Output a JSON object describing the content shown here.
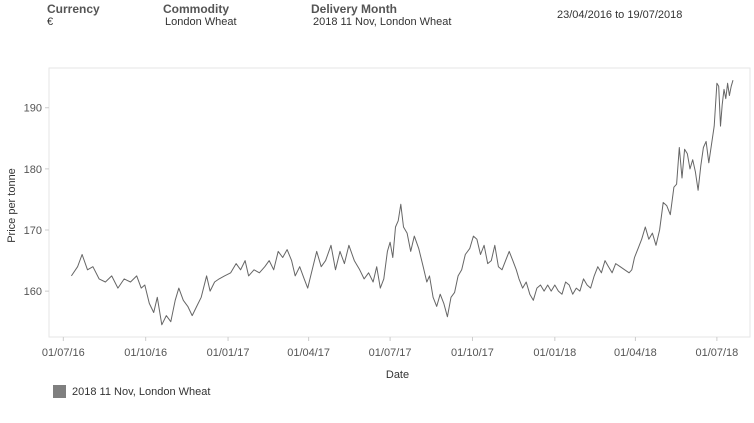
{
  "header": {
    "currency": {
      "label": "Currency",
      "value": "€"
    },
    "commodity": {
      "label": "Commodity",
      "value": "London Wheat"
    },
    "delivery": {
      "label": "Delivery Month",
      "value": "2018 11 Nov, London Wheat"
    },
    "date_range": "23/04/2016 to 19/07/2018"
  },
  "colors": {
    "line": "#666666",
    "swatch": "#7f7f7f",
    "axis": "#cccccc"
  },
  "chart_data": {
    "type": "line",
    "xlabel": "Date",
    "ylabel": "Price per tonne",
    "x_ticks": [
      "01/07/16",
      "01/10/16",
      "01/01/17",
      "01/04/17",
      "01/07/17",
      "01/10/17",
      "01/01/18",
      "01/04/18",
      "01/07/18"
    ],
    "y_ticks": [
      160,
      170,
      180,
      190
    ],
    "ylim": [
      152.5,
      196.5
    ],
    "xlim": [
      "2016-06-15",
      "2018-08-07"
    ],
    "grid": false,
    "legend_position": "bottom-left",
    "series": [
      {
        "name": "2018 11 Nov, London Wheat",
        "points": [
          [
            "2016-07-10",
            162.5
          ],
          [
            "2016-07-17",
            164.0
          ],
          [
            "2016-07-22",
            166.0
          ],
          [
            "2016-07-28",
            163.5
          ],
          [
            "2016-08-03",
            164.0
          ],
          [
            "2016-08-10",
            162.0
          ],
          [
            "2016-08-17",
            161.5
          ],
          [
            "2016-08-24",
            162.5
          ],
          [
            "2016-08-31",
            160.5
          ],
          [
            "2016-09-07",
            162.0
          ],
          [
            "2016-09-14",
            161.5
          ],
          [
            "2016-09-21",
            162.5
          ],
          [
            "2016-09-26",
            160.5
          ],
          [
            "2016-09-30",
            161.0
          ],
          [
            "2016-10-05",
            158.0
          ],
          [
            "2016-10-10",
            156.5
          ],
          [
            "2016-10-14",
            159.0
          ],
          [
            "2016-10-19",
            154.5
          ],
          [
            "2016-10-24",
            156.0
          ],
          [
            "2016-10-29",
            155.0
          ],
          [
            "2016-11-03",
            158.5
          ],
          [
            "2016-11-07",
            160.5
          ],
          [
            "2016-11-12",
            158.5
          ],
          [
            "2016-11-17",
            157.5
          ],
          [
            "2016-11-22",
            156.0
          ],
          [
            "2016-11-27",
            157.5
          ],
          [
            "2016-12-02",
            159.0
          ],
          [
            "2016-12-08",
            162.5
          ],
          [
            "2016-12-12",
            160.0
          ],
          [
            "2016-12-17",
            161.5
          ],
          [
            "2016-12-22",
            162.0
          ],
          [
            "2016-12-28",
            162.5
          ],
          [
            "2017-01-04",
            163.0
          ],
          [
            "2017-01-10",
            164.5
          ],
          [
            "2017-01-15",
            163.5
          ],
          [
            "2017-01-20",
            165.0
          ],
          [
            "2017-01-24",
            162.5
          ],
          [
            "2017-01-30",
            163.5
          ],
          [
            "2017-02-05",
            163.0
          ],
          [
            "2017-02-11",
            164.0
          ],
          [
            "2017-02-16",
            165.0
          ],
          [
            "2017-02-21",
            163.5
          ],
          [
            "2017-02-26",
            166.5
          ],
          [
            "2017-03-03",
            165.5
          ],
          [
            "2017-03-08",
            166.8
          ],
          [
            "2017-03-13",
            165.0
          ],
          [
            "2017-03-17",
            162.5
          ],
          [
            "2017-03-22",
            164.0
          ],
          [
            "2017-03-27",
            162.0
          ],
          [
            "2017-03-31",
            160.5
          ],
          [
            "2017-04-05",
            163.5
          ],
          [
            "2017-04-10",
            166.5
          ],
          [
            "2017-04-15",
            164.0
          ],
          [
            "2017-04-20",
            165.0
          ],
          [
            "2017-04-26",
            167.5
          ],
          [
            "2017-05-01",
            163.5
          ],
          [
            "2017-05-06",
            166.5
          ],
          [
            "2017-05-11",
            164.5
          ],
          [
            "2017-05-16",
            167.5
          ],
          [
            "2017-05-22",
            165.0
          ],
          [
            "2017-05-28",
            163.5
          ],
          [
            "2017-06-02",
            162.0
          ],
          [
            "2017-06-07",
            163.0
          ],
          [
            "2017-06-12",
            161.5
          ],
          [
            "2017-06-16",
            164.0
          ],
          [
            "2017-06-20",
            160.5
          ],
          [
            "2017-06-24",
            162.0
          ],
          [
            "2017-06-28",
            166.5
          ],
          [
            "2017-07-01",
            168.0
          ],
          [
            "2017-07-04",
            165.5
          ],
          [
            "2017-07-07",
            170.5
          ],
          [
            "2017-07-10",
            171.5
          ],
          [
            "2017-07-13",
            174.2
          ],
          [
            "2017-07-16",
            170.5
          ],
          [
            "2017-07-20",
            169.5
          ],
          [
            "2017-07-24",
            166.5
          ],
          [
            "2017-07-28",
            169.0
          ],
          [
            "2017-08-02",
            167.0
          ],
          [
            "2017-08-07",
            164.0
          ],
          [
            "2017-08-11",
            161.5
          ],
          [
            "2017-08-14",
            162.5
          ],
          [
            "2017-08-18",
            159.0
          ],
          [
            "2017-08-22",
            157.5
          ],
          [
            "2017-08-26",
            159.5
          ],
          [
            "2017-08-30",
            158.0
          ],
          [
            "2017-09-03",
            155.8
          ],
          [
            "2017-09-07",
            159.0
          ],
          [
            "2017-09-11",
            159.8
          ],
          [
            "2017-09-15",
            162.5
          ],
          [
            "2017-09-19",
            163.5
          ],
          [
            "2017-09-23",
            166.0
          ],
          [
            "2017-09-28",
            167.0
          ],
          [
            "2017-10-02",
            169.0
          ],
          [
            "2017-10-06",
            168.5
          ],
          [
            "2017-10-10",
            166.0
          ],
          [
            "2017-10-14",
            167.5
          ],
          [
            "2017-10-18",
            164.5
          ],
          [
            "2017-10-22",
            165.0
          ],
          [
            "2017-10-26",
            167.5
          ],
          [
            "2017-10-30",
            164.0
          ],
          [
            "2017-11-03",
            163.5
          ],
          [
            "2017-11-07",
            165.0
          ],
          [
            "2017-11-11",
            166.5
          ],
          [
            "2017-11-15",
            165.0
          ],
          [
            "2017-11-19",
            163.5
          ],
          [
            "2017-11-22",
            162.0
          ],
          [
            "2017-11-26",
            160.5
          ],
          [
            "2017-11-30",
            161.5
          ],
          [
            "2017-12-04",
            159.5
          ],
          [
            "2017-12-08",
            158.5
          ],
          [
            "2017-12-12",
            160.5
          ],
          [
            "2017-12-16",
            161.0
          ],
          [
            "2017-12-20",
            160.0
          ],
          [
            "2017-12-24",
            161.0
          ],
          [
            "2017-12-28",
            160.0
          ],
          [
            "2018-01-01",
            161.0
          ],
          [
            "2018-01-05",
            160.0
          ],
          [
            "2018-01-09",
            159.5
          ],
          [
            "2018-01-13",
            161.5
          ],
          [
            "2018-01-17",
            161.0
          ],
          [
            "2018-01-21",
            159.5
          ],
          [
            "2018-01-25",
            160.5
          ],
          [
            "2018-01-29",
            160.0
          ],
          [
            "2018-02-02",
            162.0
          ],
          [
            "2018-02-06",
            161.0
          ],
          [
            "2018-02-10",
            160.5
          ],
          [
            "2018-02-14",
            162.5
          ],
          [
            "2018-02-18",
            164.0
          ],
          [
            "2018-02-22",
            163.0
          ],
          [
            "2018-02-26",
            165.0
          ],
          [
            "2018-03-02",
            164.0
          ],
          [
            "2018-03-06",
            163.0
          ],
          [
            "2018-03-10",
            164.5
          ],
          [
            "2018-03-15",
            164.0
          ],
          [
            "2018-03-20",
            163.5
          ],
          [
            "2018-03-25",
            163.0
          ],
          [
            "2018-03-28",
            163.5
          ],
          [
            "2018-03-31",
            165.5
          ],
          [
            "2018-04-04",
            167.0
          ],
          [
            "2018-04-08",
            168.5
          ],
          [
            "2018-04-12",
            170.5
          ],
          [
            "2018-04-16",
            168.5
          ],
          [
            "2018-04-20",
            169.5
          ],
          [
            "2018-04-24",
            167.5
          ],
          [
            "2018-04-28",
            170.0
          ],
          [
            "2018-05-02",
            174.5
          ],
          [
            "2018-05-06",
            174.0
          ],
          [
            "2018-05-10",
            172.5
          ],
          [
            "2018-05-14",
            177.0
          ],
          [
            "2018-05-17",
            177.5
          ],
          [
            "2018-05-20",
            183.5
          ],
          [
            "2018-05-23",
            178.5
          ],
          [
            "2018-05-26",
            183.2
          ],
          [
            "2018-05-29",
            182.5
          ],
          [
            "2018-06-01",
            180.0
          ],
          [
            "2018-06-04",
            181.5
          ],
          [
            "2018-06-07",
            179.5
          ],
          [
            "2018-06-10",
            176.5
          ],
          [
            "2018-06-13",
            180.5
          ],
          [
            "2018-06-16",
            183.5
          ],
          [
            "2018-06-19",
            184.5
          ],
          [
            "2018-06-22",
            181.0
          ],
          [
            "2018-06-25",
            184.0
          ],
          [
            "2018-06-28",
            187.0
          ],
          [
            "2018-07-01",
            194.0
          ],
          [
            "2018-07-03",
            193.5
          ],
          [
            "2018-07-05",
            187.0
          ],
          [
            "2018-07-07",
            190.5
          ],
          [
            "2018-07-09",
            193.0
          ],
          [
            "2018-07-11",
            191.5
          ],
          [
            "2018-07-13",
            194.0
          ],
          [
            "2018-07-15",
            192.0
          ],
          [
            "2018-07-17",
            193.5
          ],
          [
            "2018-07-19",
            194.5
          ]
        ]
      }
    ]
  }
}
